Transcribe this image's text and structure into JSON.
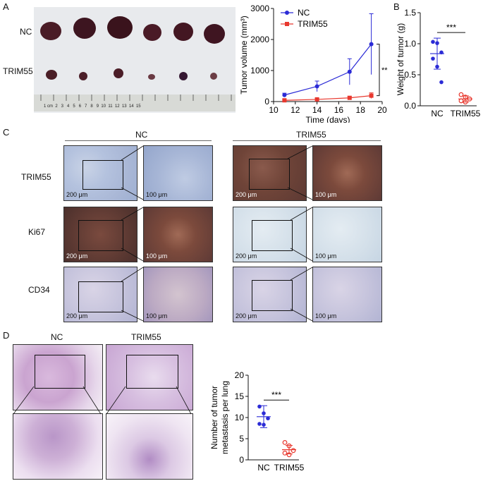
{
  "panels": {
    "A": "A",
    "B": "B",
    "C": "C",
    "D": "D"
  },
  "panelA": {
    "row_labels": [
      "NC",
      "TRIM55"
    ],
    "ruler_text": "1 cm  2   3   4   5   6   7   8   9  10  11  12  13  14  15"
  },
  "panelC": {
    "group_labels": [
      "NC",
      "TRIM55"
    ],
    "row_labels": [
      "TRIM55",
      "Ki67",
      "CD34"
    ],
    "scale_large": "200 μm",
    "scale_small": "100 μm"
  },
  "panelD": {
    "group_labels": [
      "NC",
      "TRIM55"
    ]
  },
  "chart_data": [
    {
      "id": "A",
      "type": "line",
      "xlabel": "Time (days)",
      "ylabel": "Tumor volume (mm³)",
      "xlim": [
        10,
        20
      ],
      "ylim": [
        0,
        3000
      ],
      "xticks": [
        "10",
        "12",
        "14",
        "16",
        "18",
        "20"
      ],
      "yticks": [
        "0",
        "1000",
        "2000",
        "3000"
      ],
      "legend_position": "top-left",
      "significance": "**",
      "series": [
        {
          "name": "NC",
          "color": "#2b2bd6",
          "x": [
            11,
            14,
            17,
            19
          ],
          "y": [
            210,
            490,
            960,
            1850
          ],
          "err": [
            60,
            170,
            420,
            980
          ]
        },
        {
          "name": "TRIM55",
          "color": "#e8382e",
          "x": [
            11,
            14,
            17,
            19
          ],
          "y": [
            40,
            70,
            120,
            190
          ],
          "err": [
            15,
            25,
            50,
            90
          ]
        }
      ]
    },
    {
      "id": "B",
      "type": "scatter",
      "ylabel": "Weight of tumor (g)",
      "categories": [
        "NC",
        "TRIM55"
      ],
      "ylim": [
        0,
        1.5
      ],
      "yticks": [
        "0.0",
        "0.5",
        "1.0",
        "1.5"
      ],
      "significance": "***",
      "series": [
        {
          "name": "NC",
          "color": "#2b2bd6",
          "values": [
            1.03,
            1.01,
            0.86,
            0.76,
            0.63,
            0.38
          ],
          "mean": 0.84,
          "sd": 0.25
        },
        {
          "name": "TRIM55",
          "color": "#e8382e",
          "values": [
            0.18,
            0.14,
            0.11,
            0.08,
            0.06
          ],
          "mean": 0.11,
          "sd": 0.05
        }
      ]
    },
    {
      "id": "D",
      "type": "scatter",
      "ylabel": "Number of tumor metastasis per lung",
      "categories": [
        "NC",
        "TRIM55"
      ],
      "ylim": [
        0,
        20
      ],
      "yticks": [
        "0",
        "5",
        "10",
        "15",
        "20"
      ],
      "significance": "***",
      "series": [
        {
          "name": "NC",
          "color": "#2b2bd6",
          "values": [
            12.6,
            11.0,
            9.8,
            8.5,
            8.3
          ],
          "mean": 10.2,
          "sd": 2.6
        },
        {
          "name": "TRIM55",
          "color": "#e8382e",
          "values": [
            4.1,
            3.3,
            2.2,
            1.6,
            1.2
          ],
          "mean": 2.4,
          "sd": 1.0
        }
      ]
    }
  ]
}
